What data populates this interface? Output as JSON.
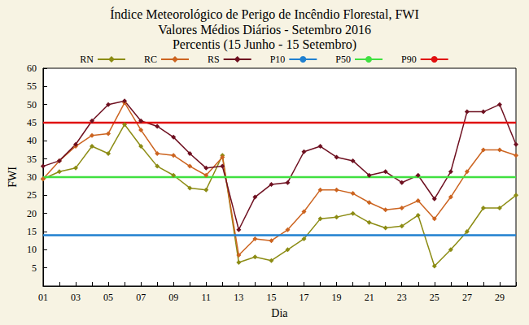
{
  "chart_data": {
    "type": "line",
    "title": "Índice Meteorológico de Perigo de Incêndio Florestal, FWI",
    "subtitle": "Valores Médios Diários - Setembro 2016\nPercentis (15 Junho - 15 Setembro)",
    "x_label": "Dia",
    "y_label": "FWI",
    "categories": [
      "01",
      null,
      "03",
      null,
      "05",
      null,
      "07",
      null,
      "09",
      null,
      "11",
      null,
      "13",
      null,
      "15",
      null,
      "17",
      null,
      "19",
      null,
      "21",
      null,
      "23",
      null,
      "25",
      null,
      "27",
      null,
      "29",
      null
    ],
    "series": [
      {
        "name": "RN",
        "color": "#8c8c14",
        "marker": "diamond",
        "line_style": "solid",
        "values": [
          29.5,
          31.5,
          32.5,
          38.5,
          36.5,
          44.5,
          38.5,
          33,
          30.5,
          27,
          26.5,
          36,
          6.5,
          8,
          7,
          10,
          13,
          18.5,
          19,
          20,
          17.5,
          16,
          16.5,
          19.5,
          5.5,
          10,
          15,
          21.5,
          21.5,
          25
        ]
      },
      {
        "name": "RC",
        "color": "#cc6420",
        "marker": "diamond",
        "line_style": "solid",
        "values": [
          29.5,
          34.5,
          38.5,
          41.5,
          42,
          50.5,
          43,
          36.5,
          36,
          33,
          30.5,
          35.5,
          8.5,
          13,
          12.5,
          15.5,
          20.5,
          26.5,
          26.5,
          25.5,
          23,
          21,
          21.5,
          23.5,
          18.5,
          24.5,
          31.5,
          37.5,
          37.5,
          36
        ]
      },
      {
        "name": "RS",
        "color": "#6e1020",
        "marker": "diamond",
        "line_style": "solid",
        "values": [
          33,
          34.5,
          39,
          45.5,
          50,
          51,
          45.5,
          44,
          41,
          36.5,
          32.5,
          33,
          15.5,
          24.5,
          28,
          28.5,
          37,
          38.5,
          35.5,
          34.5,
          30.5,
          31.5,
          28.5,
          30.5,
          24,
          31.5,
          48,
          48,
          50,
          39
        ]
      },
      {
        "name": "P10",
        "color": "#2080d0",
        "marker": "none",
        "line_style": "solid",
        "values": [
          14,
          14,
          14,
          14,
          14,
          14,
          14,
          14,
          14,
          14,
          14,
          14,
          14,
          14,
          14,
          14,
          14,
          14,
          14,
          14,
          14,
          14,
          14,
          14,
          14,
          14,
          14,
          14,
          14,
          14
        ]
      },
      {
        "name": "P50",
        "color": "#40e040",
        "marker": "none",
        "line_style": "solid",
        "values": [
          30,
          30,
          30,
          30,
          30,
          30,
          30,
          30,
          30,
          30,
          30,
          30,
          30,
          30,
          30,
          30,
          30,
          30,
          30,
          30,
          30,
          30,
          30,
          30,
          30,
          30,
          30,
          30,
          30,
          30
        ]
      },
      {
        "name": "P90",
        "color": "#e01010",
        "marker": "none",
        "line_style": "solid",
        "values": [
          45,
          45,
          45,
          45,
          45,
          45,
          45,
          45,
          45,
          45,
          45,
          45,
          45,
          45,
          45,
          45,
          45,
          45,
          45,
          45,
          45,
          45,
          45,
          45,
          45,
          45,
          45,
          45,
          45,
          45
        ]
      }
    ],
    "ylim": [
      0,
      60
    ],
    "yticks": [
      5,
      10,
      15,
      20,
      25,
      30,
      35,
      40,
      45,
      50,
      55,
      60
    ],
    "grid": false,
    "legend": "top"
  }
}
